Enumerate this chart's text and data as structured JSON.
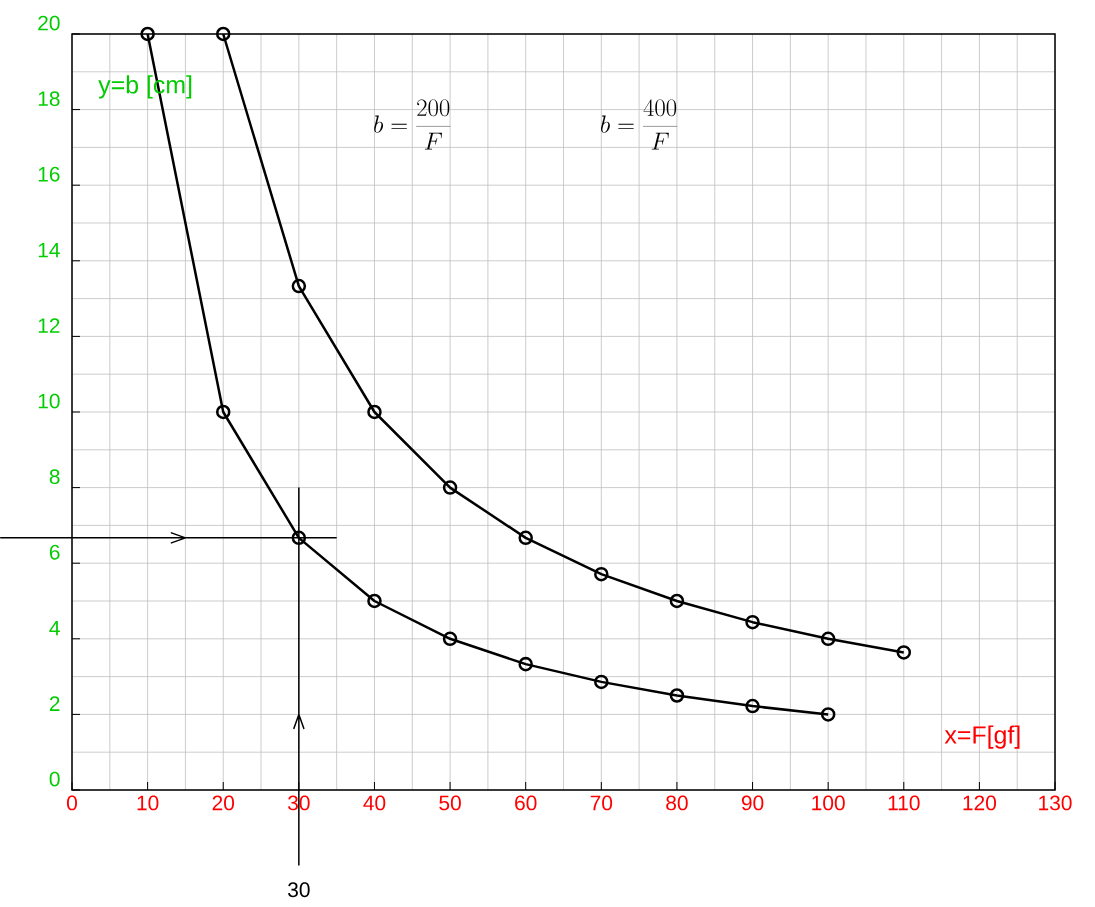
{
  "chart_data": {
    "type": "line",
    "xlabel": "x=F[gf]",
    "ylabel": "y=b [cm]",
    "annotations": [
      "b = \\frac{200}{F}",
      "b = \\frac{400}{F}"
    ],
    "series": [
      {
        "color": "#000000",
        "x": [
          10,
          20,
          30,
          40,
          50,
          60,
          70,
          80,
          90,
          100
        ],
        "values": [
          20,
          10,
          6.67,
          5,
          4,
          3.33,
          2.86,
          2.5,
          2.22,
          2
        ]
      },
      {
        "color": "#000000",
        "x": [
          20,
          30,
          40,
          50,
          60,
          70,
          80,
          90,
          100,
          110
        ],
        "values": [
          20,
          13.33,
          10,
          8,
          6.67,
          5.71,
          5,
          4.44,
          4,
          3.64
        ]
      }
    ],
    "xlim": [
      0,
      130
    ],
    "ylim": [
      0,
      20
    ],
    "xticks": [
      0,
      10,
      20,
      30,
      40,
      50,
      60,
      70,
      80,
      90,
      100,
      110,
      120,
      130
    ],
    "yticks": [
      0,
      2,
      4,
      6,
      8,
      10,
      12,
      14,
      16,
      18,
      20
    ],
    "ref_lines": [
      {
        "axis": "y",
        "value": 6.67,
        "color": "#000000"
      },
      {
        "axis": "x",
        "value": 30,
        "label": "30",
        "color": "#000000"
      }
    ],
    "grid": true,
    "marker": "circle",
    "line_style": "solid"
  }
}
